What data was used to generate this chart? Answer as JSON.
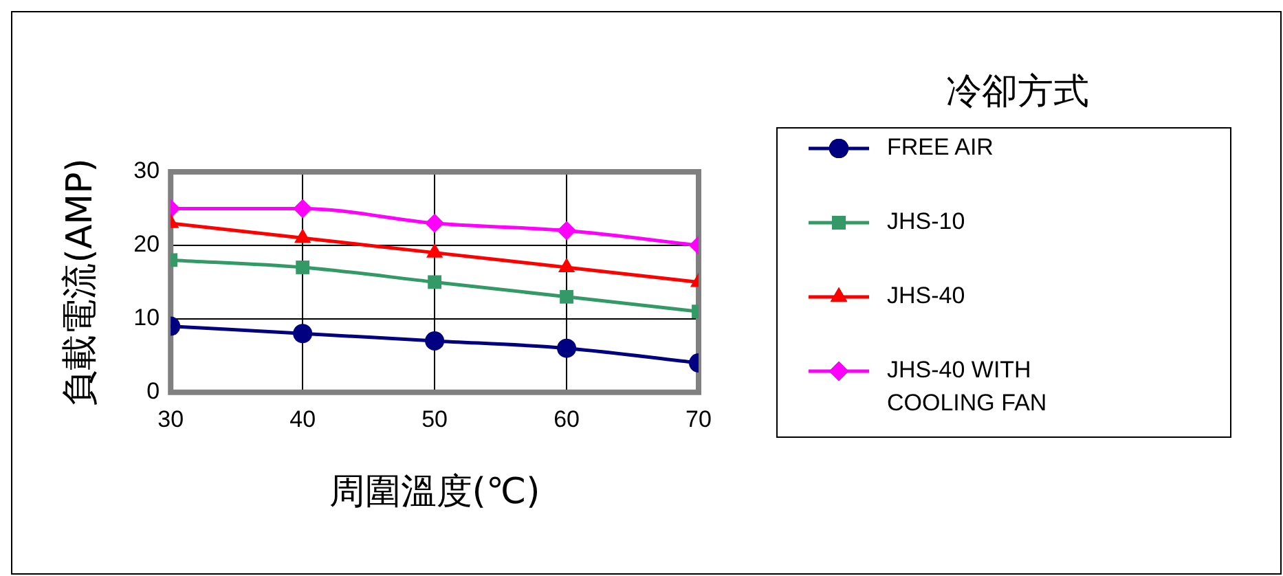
{
  "chart_data": {
    "type": "line",
    "xlabel": "周圍溫度(℃)",
    "ylabel": "負載電流(AMP)",
    "legend_title": "冷卻方式",
    "legend": "right",
    "grid": true,
    "x": [
      30,
      40,
      50,
      60,
      70
    ],
    "xlim": [
      30,
      70
    ],
    "xticks": [
      30,
      40,
      50,
      60,
      70
    ],
    "ylim": [
      0,
      30
    ],
    "yticks": [
      0,
      10,
      20,
      30
    ],
    "line_style": "solid",
    "series": [
      {
        "name": "FREE AIR",
        "color": "#000080",
        "marker": "circle",
        "values": [
          9,
          8,
          7,
          6,
          4
        ]
      },
      {
        "name": "JHS-10",
        "color": "#339966",
        "marker": "square",
        "values": [
          18,
          17,
          15,
          13,
          11
        ]
      },
      {
        "name": "JHS-40",
        "color": "#ff0000",
        "marker": "triangle",
        "values": [
          23,
          21,
          19,
          17,
          15
        ]
      },
      {
        "name": "JHS-40 WITH COOLING FAN",
        "color": "#ff00ff",
        "marker": "diamond",
        "values": [
          25,
          25,
          23,
          22,
          20
        ]
      }
    ]
  }
}
